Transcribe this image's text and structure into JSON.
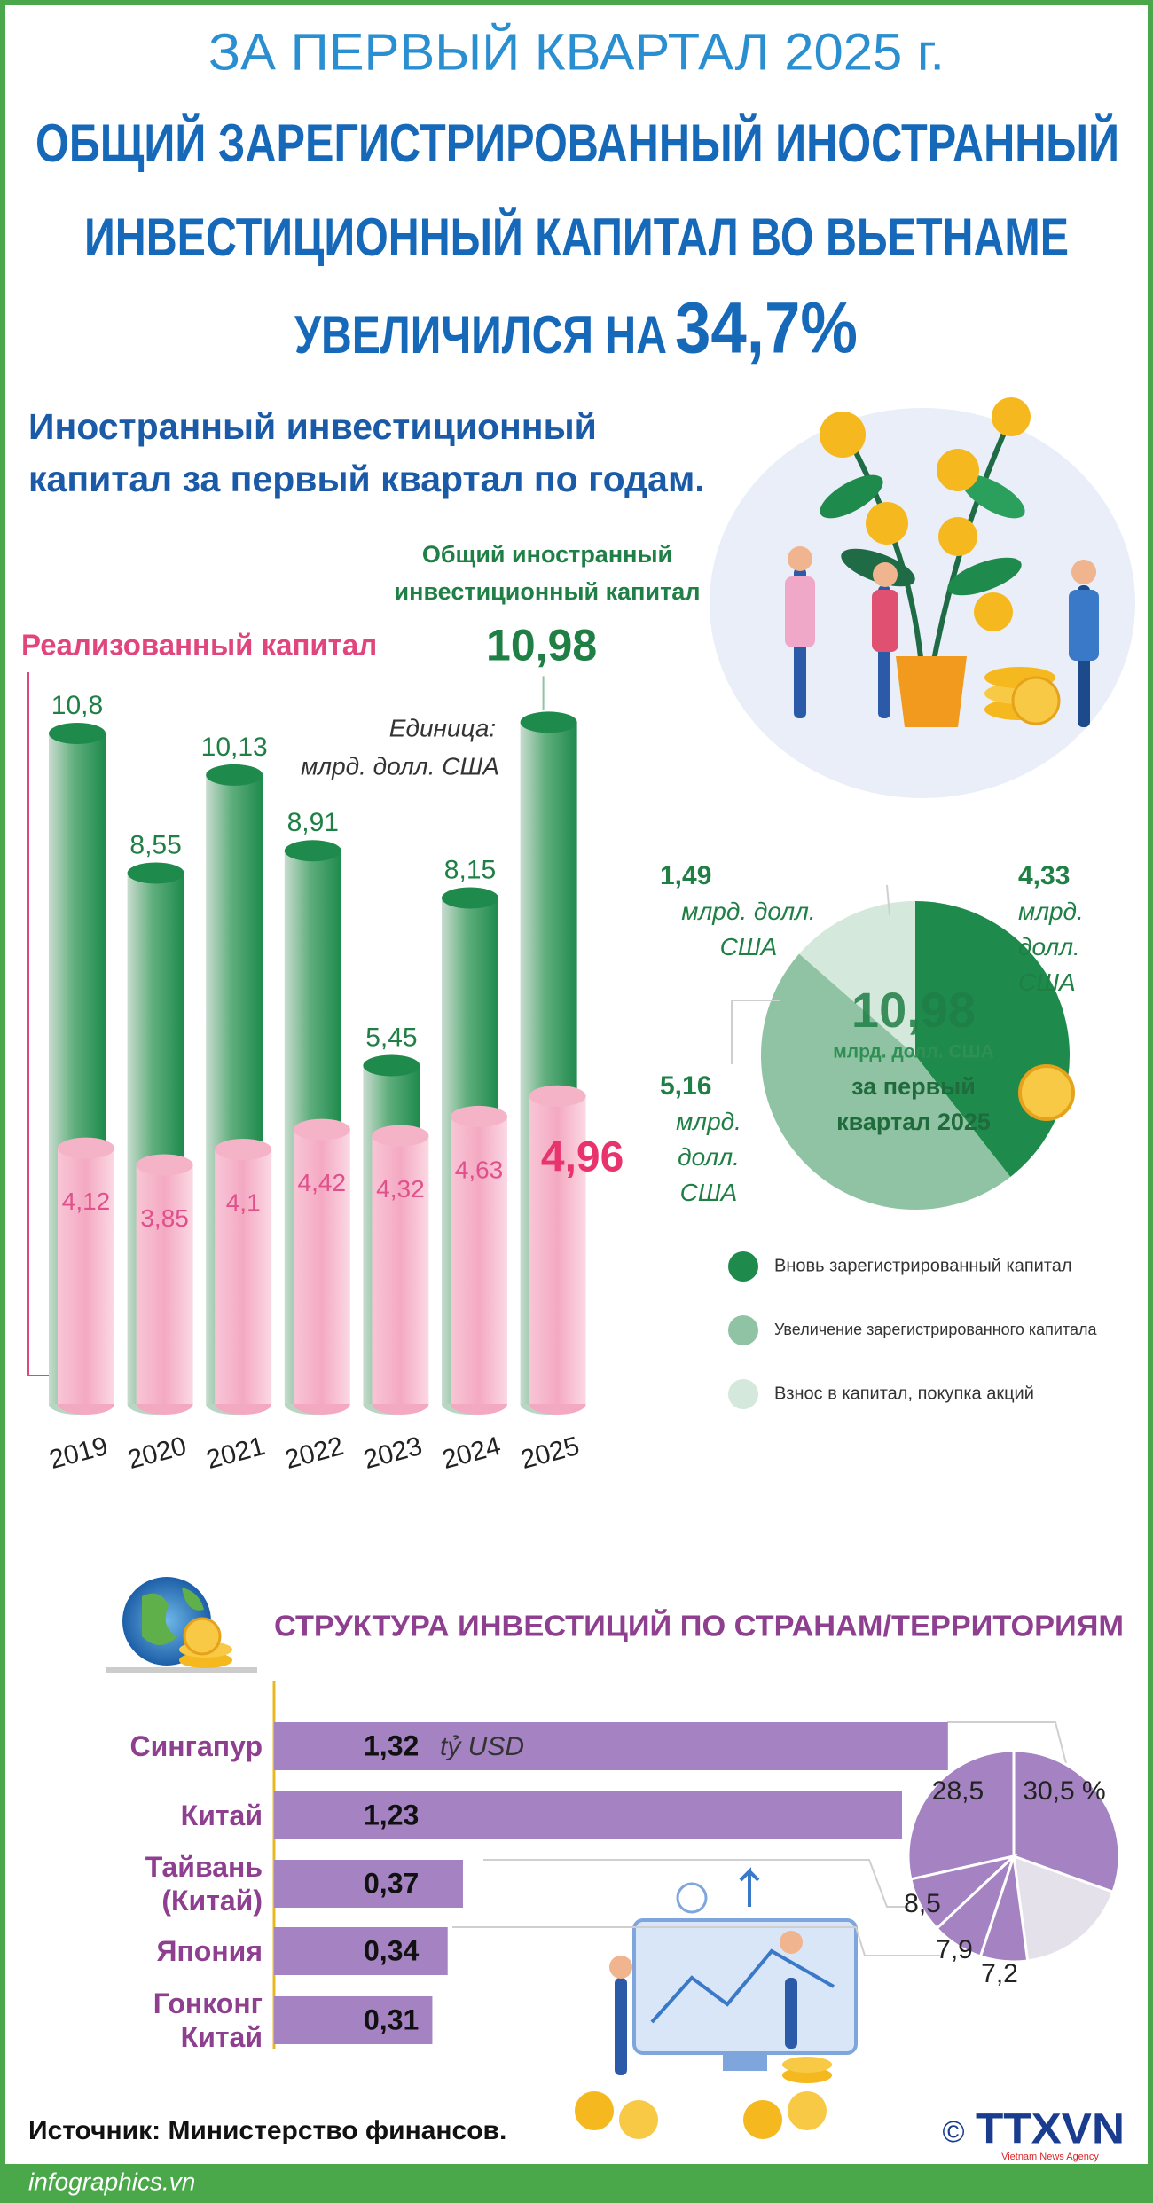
{
  "header": {
    "kicker": "ЗА ПЕРВЫЙ КВАРТАЛ 2025 г.",
    "title_lines": [
      "ОБЩИЙ ЗАРЕГИСТРИРОВАННЫЙ ИНОСТРАННЫЙ",
      "ИНВЕСТИЦИОННЫЙ КАПИТАЛ ВО ВЬЕТНАМЕ",
      "УВЕЛИЧИЛСЯ НА"
    ],
    "highlight": "34,7%"
  },
  "chart_data": [
    {
      "type": "bar",
      "title": "Иностранный инвестиционный капитал за первый квартал по годам.",
      "unit_note": [
        "Единица:",
        "млрд. долл. США"
      ],
      "categories": [
        "2019",
        "2020",
        "2021",
        "2022",
        "2023",
        "2024",
        "2025"
      ],
      "series": [
        {
          "name": "Общий иностранный инвестиционный капитал",
          "color": "#1e8a4c",
          "values": [
            10.8,
            8.55,
            10.13,
            8.91,
            5.45,
            8.15,
            10.98
          ],
          "value_labels": [
            "10,8",
            "8,55",
            "10,13",
            "8,91",
            "5,45",
            "8,15",
            "10,98"
          ]
        },
        {
          "name": "Реализованный капитал",
          "color": "#f5b3c8",
          "values": [
            4.12,
            3.85,
            4.1,
            4.42,
            4.32,
            4.63,
            4.96
          ],
          "value_labels": [
            "4,12",
            "3,85",
            "4,1",
            "4,42",
            "4,32",
            "4,63",
            "4,96"
          ]
        }
      ],
      "ylim": [
        0,
        12
      ]
    },
    {
      "type": "pie",
      "categories": [
        "Вновь зарегистрированный капитал",
        "Увеличение зарегистрированного капитала",
        "Взнос в капитал, покупка акций"
      ],
      "colors": [
        "#1e8a4c",
        "#8fc3a3",
        "#d5e8dc"
      ],
      "values": [
        4.33,
        5.16,
        1.49
      ],
      "value_labels": [
        "4,33",
        "5,16",
        "1,49"
      ],
      "unit": "млрд. долл. США",
      "center_label": "10,98",
      "center_unit": "млрд. долл. США",
      "center_caption": "за первый квартал 2025"
    },
    {
      "type": "hbar",
      "title": "СТРУКТУРА ИНВЕСТИЦИЙ ПО СТРАНАМ/ТЕРРИТОРИЯМ",
      "categories": [
        "Сингапур",
        "Китай",
        "Тайвань (Китай)",
        "Япония",
        "Гонконг Китай"
      ],
      "values": [
        1.32,
        1.23,
        0.37,
        0.34,
        0.31
      ],
      "value_labels": [
        "1,32",
        "1,23",
        "0,37",
        "0,34",
        "0,31"
      ],
      "unit": "tỷ USD",
      "color": "#a583c3",
      "xlim": [
        0,
        1.6
      ]
    },
    {
      "type": "pie",
      "values": [
        30.5,
        28.5,
        8.5,
        7.9,
        7.2
      ],
      "value_labels": [
        "30,5 %",
        "28,5",
        "8,5",
        "7,9",
        "7,2"
      ],
      "color": "#a583c3",
      "rest_color": "#e4e1ea"
    }
  ],
  "footer": {
    "source": "Источник: Министерство финансов.",
    "site": "infographics.vn",
    "copyright": "©",
    "logo": "TTXVN",
    "logo_sub": "Vietnam News Agency"
  }
}
